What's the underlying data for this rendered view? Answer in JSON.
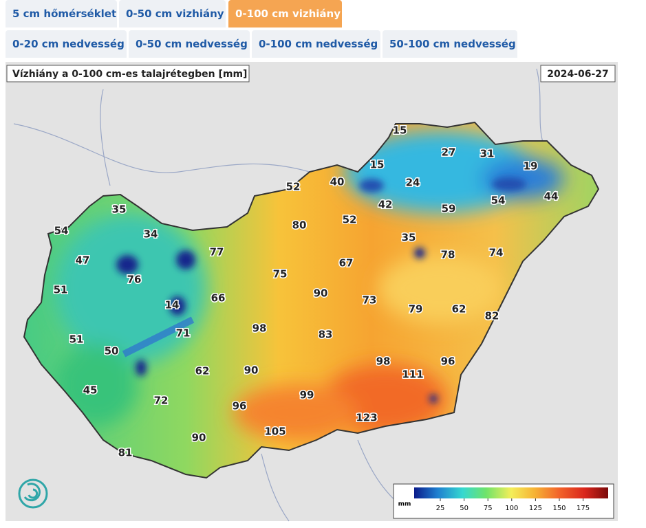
{
  "tabs_row1": [
    "5 cm hőmérséklet",
    "0-50 cm vizhiány",
    "0-100 cm vizhiány"
  ],
  "tabs_row2": [
    "0-20 cm nedvesség",
    "0-50 cm nedvesség",
    "0-100 cm nedvesség",
    "50-100 cm nedvesség"
  ],
  "active_tab": "0-100 cm vizhiány",
  "map": {
    "title": "Vízhiány a 0-100 cm-es talajrétegben [mm]",
    "date": "2024-06-27",
    "stations": [
      15,
      27,
      31,
      19,
      15,
      24,
      52,
      40,
      42,
      54,
      44,
      59,
      52,
      35,
      54,
      34,
      80,
      35,
      77,
      78,
      74,
      47,
      67,
      76,
      75,
      51,
      90,
      73,
      79,
      62,
      66,
      14,
      82,
      71,
      98,
      83,
      51,
      50,
      98,
      96,
      111,
      62,
      90,
      45,
      99,
      72,
      96,
      123,
      105,
      90,
      81
    ],
    "legend": {
      "unit": "mm",
      "ticks": [
        25,
        50,
        75,
        100,
        125,
        150,
        175
      ]
    }
  }
}
